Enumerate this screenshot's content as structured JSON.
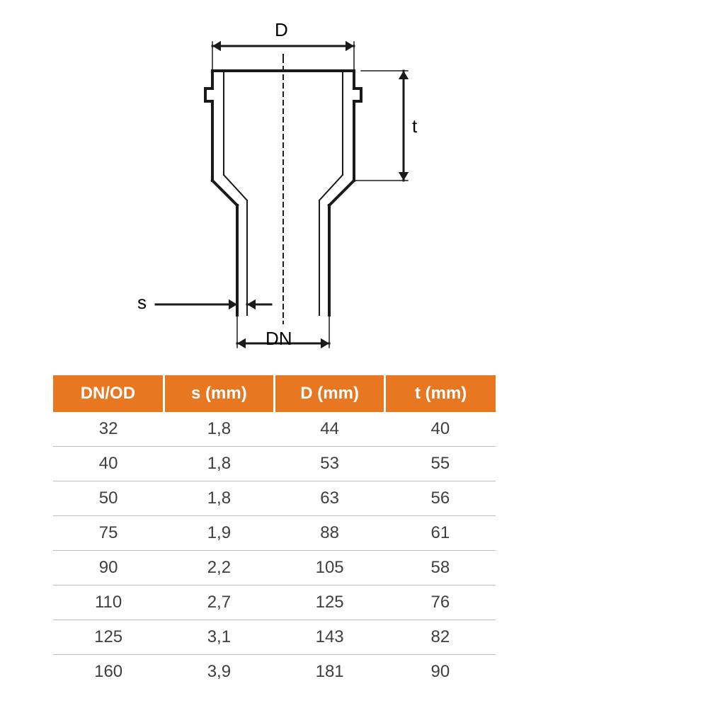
{
  "diagram": {
    "labels": {
      "D": "D",
      "t": "t",
      "s": "s",
      "DN": "DN"
    },
    "stroke_color": "#1a1a1a",
    "stroke_width_main": 4,
    "stroke_width_dim": 3,
    "center_dash": "6,6",
    "label_fontsize": 26
  },
  "table": {
    "type": "table",
    "header_bg": "#e87722",
    "header_fg": "#ffffff",
    "cell_fg": "#3f3f3f",
    "row_border": "#bdbdbd",
    "columns": [
      "DN/OD",
      "s (mm)",
      "D (mm)",
      "t (mm)"
    ],
    "rows": [
      [
        "32",
        "1,8",
        "44",
        "40"
      ],
      [
        "40",
        "1,8",
        "53",
        "55"
      ],
      [
        "50",
        "1,8",
        "63",
        "56"
      ],
      [
        "75",
        "1,9",
        "88",
        "61"
      ],
      [
        "90",
        "2,2",
        "105",
        "58"
      ],
      [
        "110",
        "2,7",
        "125",
        "76"
      ],
      [
        "125",
        "3,1",
        "143",
        "82"
      ],
      [
        "160",
        "3,9",
        "181",
        "90"
      ]
    ],
    "header_fontsize": 24,
    "cell_fontsize": 24
  }
}
